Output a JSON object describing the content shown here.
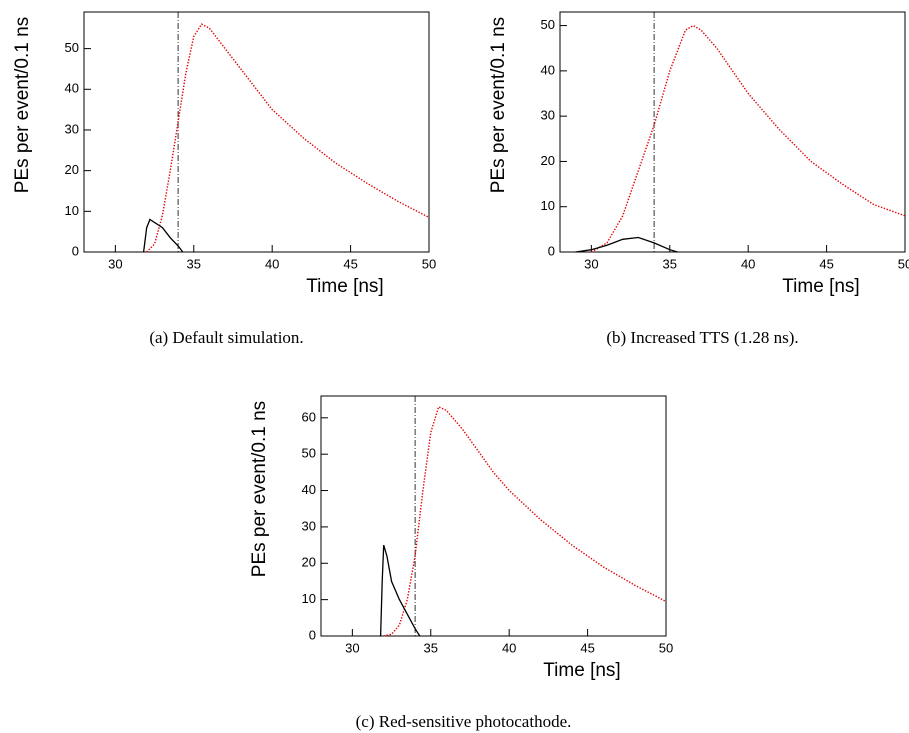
{
  "chart_data": [
    {
      "type": "line",
      "caption": "(a)  Default simulation.",
      "xlabel": "Time [ns]",
      "ylabel": "PEs per event/0.1 ns",
      "xlim": [
        28,
        50
      ],
      "ylim": [
        0,
        59
      ],
      "xticks": [
        30,
        35,
        40,
        45,
        50
      ],
      "yticks": [
        0,
        10,
        20,
        30,
        40,
        50
      ],
      "vline": 34,
      "series": [
        {
          "color": "#e00000",
          "style": "dotted",
          "x": [
            32,
            32.5,
            33,
            33.5,
            34,
            34.5,
            35,
            35.5,
            36,
            37,
            38,
            39,
            40,
            42,
            44,
            46,
            48,
            50
          ],
          "values": [
            0,
            2,
            9,
            20,
            32,
            44,
            53,
            56,
            55,
            50,
            45,
            40,
            35,
            28,
            22,
            17,
            12.5,
            8.5
          ]
        },
        {
          "color": "#000000",
          "style": "solid",
          "x": [
            31.8,
            32,
            32.2,
            33,
            33.5,
            34,
            34.3
          ],
          "values": [
            0,
            6,
            8,
            6,
            3.5,
            1.5,
            0
          ]
        }
      ]
    },
    {
      "type": "line",
      "caption": "(b)  Increased TTS (1.28 ns).",
      "xlabel": "Time [ns]",
      "ylabel": "PEs per event/0.1 ns",
      "xlim": [
        28,
        50
      ],
      "ylim": [
        0,
        53
      ],
      "xticks": [
        30,
        35,
        40,
        45,
        50
      ],
      "yticks": [
        0,
        10,
        20,
        30,
        40,
        50
      ],
      "vline": 34,
      "series": [
        {
          "color": "#e00000",
          "style": "dotted",
          "x": [
            30,
            31,
            32,
            33,
            34,
            35,
            36,
            36.5,
            37,
            38,
            39,
            40,
            42,
            44,
            46,
            48,
            50
          ],
          "values": [
            0,
            2,
            8,
            18,
            28,
            40,
            49,
            50,
            49,
            45,
            40,
            35,
            27,
            20,
            15,
            10.5,
            8
          ]
        },
        {
          "color": "#000000",
          "style": "solid",
          "x": [
            29,
            30,
            31,
            32,
            33,
            34,
            35,
            35.5
          ],
          "values": [
            0,
            0.5,
            1.5,
            2.8,
            3.2,
            2,
            0.5,
            0
          ]
        }
      ]
    },
    {
      "type": "line",
      "caption": "(c)  Red-sensitive photocathode.",
      "xlabel": "Time [ns]",
      "ylabel": "PEs per event/0.1 ns",
      "xlim": [
        28,
        50
      ],
      "ylim": [
        0,
        66
      ],
      "xticks": [
        30,
        35,
        40,
        45,
        50
      ],
      "yticks": [
        0,
        10,
        20,
        30,
        40,
        50,
        60
      ],
      "vline": 34,
      "series": [
        {
          "color": "#e00000",
          "style": "dotted",
          "x": [
            32,
            32.5,
            33,
            33.5,
            34,
            34.5,
            35,
            35.5,
            36,
            37,
            38,
            39,
            40,
            42,
            44,
            46,
            48,
            50
          ],
          "values": [
            0,
            0.5,
            3,
            10,
            22,
            40,
            56,
            63,
            62,
            57,
            51,
            45,
            40,
            32,
            25,
            19,
            14,
            9.5
          ]
        },
        {
          "color": "#000000",
          "style": "solid",
          "x": [
            31.8,
            31.9,
            32,
            32.2,
            32.5,
            33,
            33.5,
            34,
            34.3
          ],
          "values": [
            0,
            15,
            25,
            22,
            15,
            10,
            6,
            2,
            0
          ]
        }
      ]
    }
  ]
}
